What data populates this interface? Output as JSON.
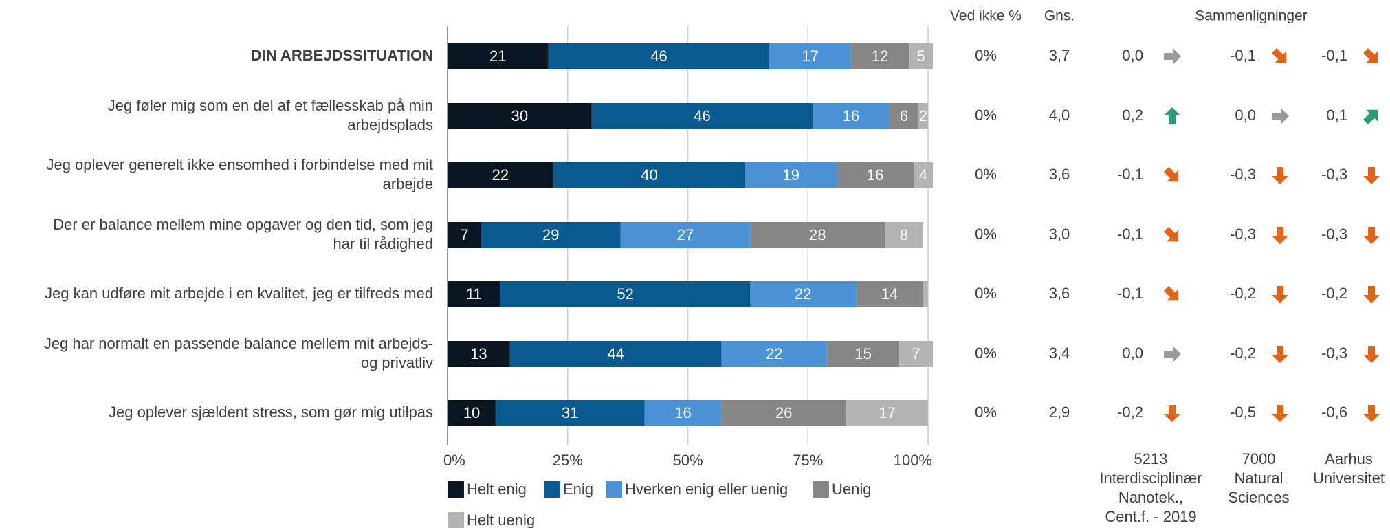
{
  "chart_data": {
    "type": "bar",
    "orientation": "horizontal-stacked-percent",
    "xlim": [
      0,
      100
    ],
    "x_ticks": [
      "0%",
      "25%",
      "50%",
      "75%",
      "100%"
    ],
    "grid": true,
    "legend_position": "bottom",
    "categories": [
      "DIN ARBEJDSSITUATION",
      "Jeg føler mig som en del af et fællesskab på min arbejdsplads",
      "Jeg oplever generelt ikke ensomhed i forbindelse med mit arbejde",
      "Der er balance mellem mine opgaver og den tid, som jeg har til rådighed",
      "Jeg kan udføre mit arbejde i en kvalitet, jeg er tilfreds med",
      "Jeg har normalt en passende balance mellem mit arbejds- og privatliv",
      "Jeg oplever sjældent stress, som gør mig utilpas"
    ],
    "category_lines": [
      [
        "DIN ARBEJDSSITUATION"
      ],
      [
        "Jeg føler mig som en del af et fællesskab på min",
        "arbejdsplads"
      ],
      [
        "Jeg oplever generelt ikke ensomhed i forbindelse med mit",
        "arbejde"
      ],
      [
        "Der er balance mellem mine opgaver og den tid, som jeg",
        "har til rådighed"
      ],
      [
        "Jeg kan udføre mit arbejde i en kvalitet, jeg er tilfreds med"
      ],
      [
        "Jeg har normalt en passende balance mellem mit arbejds-",
        "og privatliv"
      ],
      [
        "Jeg oplever sjældent stress, som gør mig utilpas"
      ]
    ],
    "series": [
      {
        "name": "Helt enig",
        "color": "#0b1622",
        "values": [
          21,
          30,
          22,
          7,
          11,
          13,
          10
        ]
      },
      {
        "name": "Enig",
        "color": "#0a5a8f",
        "values": [
          46,
          46,
          40,
          29,
          52,
          44,
          31
        ]
      },
      {
        "name": "Hverken enig eller uenig",
        "color": "#4b93d6",
        "values": [
          17,
          16,
          19,
          27,
          22,
          22,
          16
        ]
      },
      {
        "name": "Uenig",
        "color": "#878787",
        "values": [
          12,
          6,
          16,
          28,
          14,
          15,
          26
        ]
      },
      {
        "name": "Helt uenig",
        "color": "#b4b4b4",
        "values": [
          5,
          2,
          4,
          8,
          1,
          7,
          17
        ]
      }
    ],
    "segment_labels": [
      [
        "21",
        "46",
        "17",
        "12",
        "5"
      ],
      [
        "30",
        "46",
        "16",
        "6",
        "2"
      ],
      [
        "22",
        "40",
        "19",
        "16",
        "4"
      ],
      [
        "7",
        "29",
        "27",
        "28",
        "8"
      ],
      [
        "11",
        "52",
        "22",
        "14",
        ""
      ],
      [
        "13",
        "44",
        "22",
        "15",
        "7"
      ],
      [
        "10",
        "31",
        "16",
        "26",
        "17"
      ]
    ],
    "table": {
      "ved_ikke_header": "Ved ikke %",
      "gns_header": "Gns.",
      "comparisons_header": "Sammenligninger",
      "ved_ikke": [
        "0%",
        "0%",
        "0%",
        "0%",
        "0%",
        "0%",
        "0%"
      ],
      "gns": [
        "3,7",
        "4,0",
        "3,6",
        "3,0",
        "3,6",
        "3,4",
        "2,9"
      ],
      "comparison_groups": [
        {
          "lines": [
            "5213",
            "Interdisciplinær",
            "Nanotek.,",
            "Cent.f. - 2019"
          ],
          "values": [
            "0,0",
            "0,2",
            "-0,1",
            "-0,1",
            "-0,1",
            "0,0",
            "-0,2"
          ],
          "arrows": [
            "flat",
            "up",
            "down-right",
            "down-right",
            "down-right",
            "flat",
            "down"
          ]
        },
        {
          "lines": [
            "7000",
            "Natural",
            "Sciences"
          ],
          "values": [
            "-0,1",
            "0,0",
            "-0,3",
            "-0,3",
            "-0,2",
            "-0,2",
            "-0,5"
          ],
          "arrows": [
            "down-right",
            "flat",
            "down",
            "down",
            "down",
            "down",
            "down"
          ]
        },
        {
          "lines": [
            "Aarhus",
            "Universitet"
          ],
          "values": [
            "-0,1",
            "0,1",
            "-0,3",
            "-0,3",
            "-0,2",
            "-0,3",
            "-0,6"
          ],
          "arrows": [
            "down-right",
            "up-right",
            "down",
            "down",
            "down",
            "down",
            "down"
          ]
        }
      ],
      "arrow_colors": {
        "flat": "#9a9a9a",
        "up": "#2a9d78",
        "up-right": "#2a9d78",
        "down": "#e0641a",
        "down-right": "#e0641a"
      }
    }
  }
}
